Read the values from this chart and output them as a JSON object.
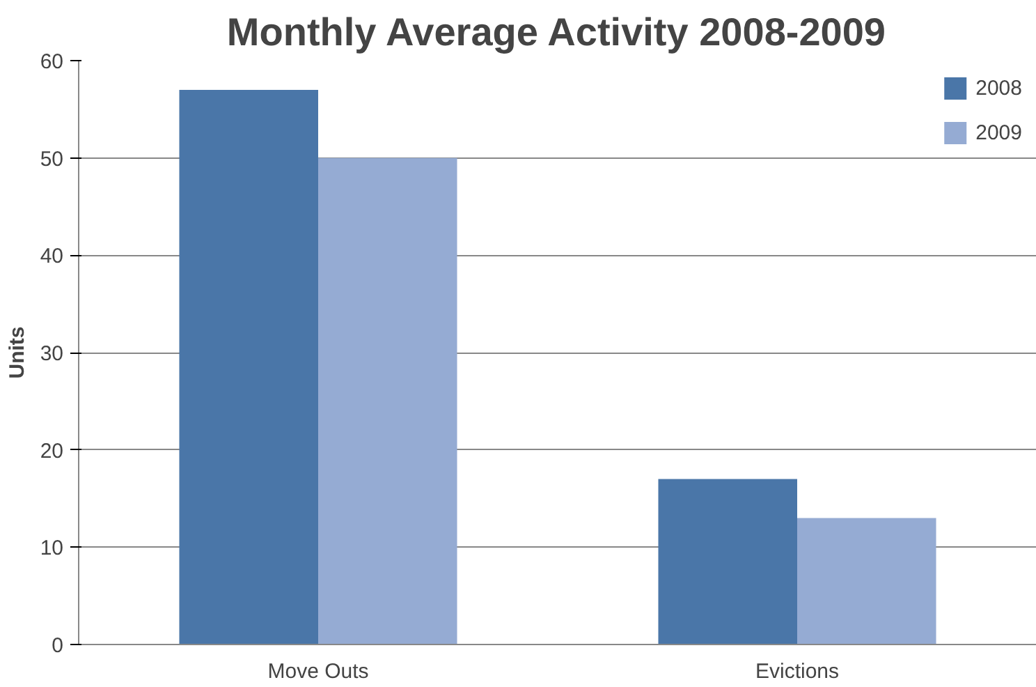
{
  "chart_data": {
    "type": "bar",
    "title": "Monthly Average Activity 2008-2009",
    "ylabel": "Units",
    "categories": [
      "Move Outs",
      "Evictions"
    ],
    "series": [
      {
        "name": "2008",
        "color": "#4a76a8",
        "values": [
          57,
          17
        ]
      },
      {
        "name": "2009",
        "color": "#95abd3",
        "values": [
          50,
          13
        ]
      }
    ],
    "ylim": [
      0,
      60
    ],
    "yticks": [
      0,
      10,
      20,
      30,
      40,
      50,
      60
    ],
    "grid": "y",
    "legend": "top right"
  }
}
